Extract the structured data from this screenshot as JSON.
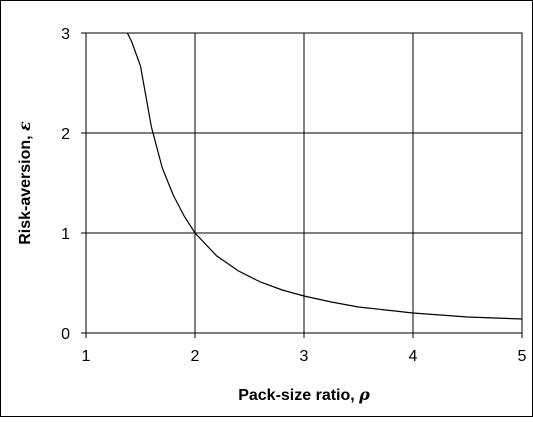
{
  "chart_data": {
    "type": "line",
    "xlabel": "Pack-size ratio, ",
    "xlabel_symbol": "ρ",
    "ylabel": "Risk-aversion, ",
    "ylabel_symbol": "ε",
    "xlim": [
      1,
      5
    ],
    "ylim": [
      0,
      3
    ],
    "x_ticks": [
      "1",
      "2",
      "3",
      "4",
      "5"
    ],
    "y_ticks": [
      "0",
      "1",
      "2",
      "3"
    ],
    "grid": true,
    "legend": "none",
    "line_color": "#000000",
    "series": [
      {
        "x": [
          1.38,
          1.42,
          1.5,
          1.6,
          1.7,
          1.8,
          1.9,
          2.0,
          2.2,
          2.4,
          2.6,
          2.8,
          3.0,
          3.25,
          3.5,
          3.75,
          4.0,
          4.25,
          4.5,
          4.75,
          5.0
        ],
        "y": [
          3.0,
          2.91,
          2.67,
          2.06,
          1.65,
          1.38,
          1.17,
          1.0,
          0.77,
          0.62,
          0.51,
          0.43,
          0.37,
          0.31,
          0.26,
          0.23,
          0.2,
          0.18,
          0.16,
          0.15,
          0.14
        ]
      }
    ]
  }
}
